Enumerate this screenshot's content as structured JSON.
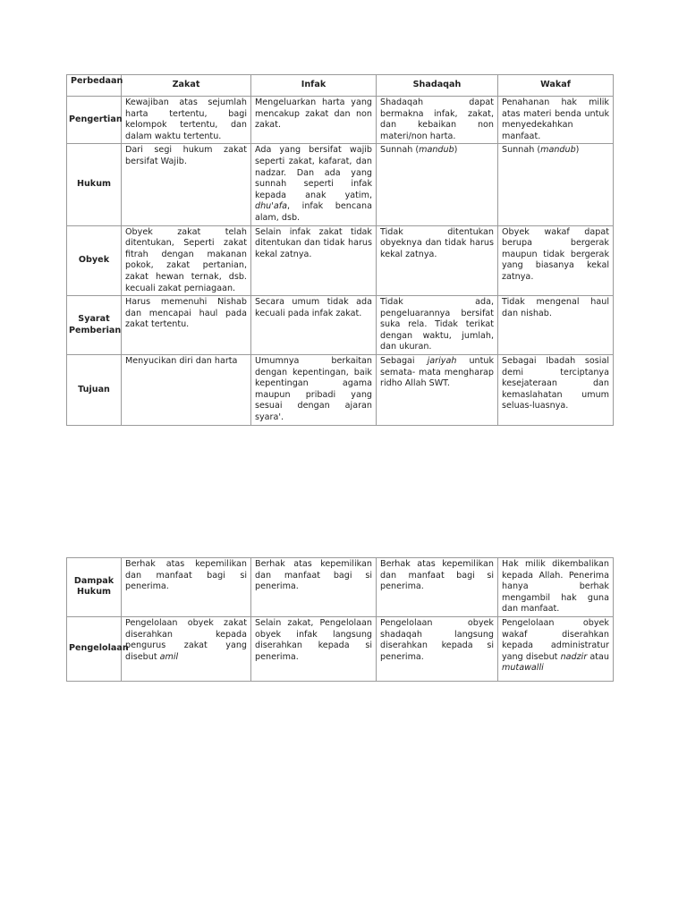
{
  "table1": {
    "headers": [
      "Perbedaan",
      "Zakat",
      "Infak",
      "Shadaqah",
      "Wakaf"
    ],
    "rows": [
      {
        "label": "Pengertian",
        "cells": [
          [
            {
              "t": "Kewajiban atas sejumlah harta tertentu, bagi kelompok tertentu, dan dalam waktu tertentu."
            }
          ],
          [
            {
              "t": "Mengeluarkan harta yang mencakup zakat dan non zakat."
            }
          ],
          [
            {
              "t": "Shadaqah dapat bermakna infak, zakat, dan kebaikan non materi/non harta."
            }
          ],
          [
            {
              "t": "Penahanan hak milik atas materi benda untuk menyedekahkan manfaat."
            }
          ]
        ]
      },
      {
        "label": "Hukum",
        "cells": [
          [
            {
              "t": "Dari segi hukum zakat bersifat Wajib."
            }
          ],
          [
            {
              "t": "Ada yang bersifat wajib seperti zakat, kafarat, dan nadzar. Dan ada yang sunnah seperti infak kepada anak yatim, "
            },
            {
              "t": "dhu'afa",
              "i": true
            },
            {
              "t": ", infak bencana alam, dsb."
            }
          ],
          [
            {
              "t": "Sunnah ("
            },
            {
              "t": "mandub",
              "i": true
            },
            {
              "t": ")"
            }
          ],
          [
            {
              "t": "Sunnah ("
            },
            {
              "t": "mandub",
              "i": true
            },
            {
              "t": ")"
            }
          ]
        ]
      },
      {
        "label": "Obyek",
        "cells": [
          [
            {
              "t": "Obyek zakat telah ditentukan, Seperti zakat fitrah dengan makanan pokok, zakat pertanian, zakat hewan ternak, dsb. kecuali zakat perniagaan."
            }
          ],
          [
            {
              "t": "Selain infak zakat tidak ditentukan dan tidak harus kekal zatnya."
            }
          ],
          [
            {
              "t": "Tidak ditentukan obyeknya dan tidak harus kekal zatnya."
            }
          ],
          [
            {
              "t": "Obyek wakaf dapat berupa bergerak maupun tidak bergerak yang biasanya kekal zatnya."
            }
          ]
        ]
      },
      {
        "label": "Syarat Pemberian",
        "cells": [
          [
            {
              "t": "Harus memenuhi Nishab dan mencapai haul pada zakat tertentu."
            }
          ],
          [
            {
              "t": "Secara umum tidak ada kecuali pada infak zakat."
            }
          ],
          [
            {
              "t": "Tidak ada, pengeluarannya bersifat suka rela. Tidak terikat dengan waktu, jumlah, dan ukuran."
            }
          ],
          [
            {
              "t": "Tidak mengenal haul dan nishab."
            }
          ]
        ]
      },
      {
        "label": "Tujuan",
        "cells": [
          [
            {
              "t": "Menyucikan diri dan harta"
            }
          ],
          [
            {
              "t": "Umumnya berkaitan dengan kepentingan, baik kepentingan agama maupun pribadi yang sesuai dengan ajaran syara'."
            }
          ],
          [
            {
              "t": "Sebagai "
            },
            {
              "t": "jariyah",
              "i": true
            },
            {
              "t": " untuk semata- mata mengharap ridho Allah SWT."
            }
          ],
          [
            {
              "t": "Sebagai Ibadah sosial demi terciptanya kesejateraan dan kemaslahatan umum seluas-luasnya."
            }
          ]
        ]
      }
    ]
  },
  "table2": {
    "rows": [
      {
        "label": "Dampak Hukum",
        "cells": [
          [
            {
              "t": "Berhak atas kepemilikan dan manfaat bagi si penerima."
            }
          ],
          [
            {
              "t": "Berhak atas kepemilikan dan manfaat bagi si penerima."
            }
          ],
          [
            {
              "t": "Berhak atas kepemilikan dan manfaat bagi si penerima."
            }
          ],
          [
            {
              "t": "Hak milik dikembalikan kepada Allah. Penerima hanya berhak mengambil hak guna dan manfaat."
            }
          ]
        ]
      },
      {
        "label": "Pengelolaan",
        "cells": [
          [
            {
              "t": "Pengelolaan obyek zakat diserahkan kepada pengurus zakat yang disebut "
            },
            {
              "t": "amil",
              "i": true
            }
          ],
          [
            {
              "t": "Selain zakat, Pengelolaan obyek infak langsung diserahkan kepada si penerima."
            }
          ],
          [
            {
              "t": "Pengelolaan obyek shadaqah langsung diserahkan kepada si penerima."
            }
          ],
          [
            {
              "t": "Pengelolaan obyek wakaf diserahkan kepada administratur yang disebut "
            },
            {
              "t": "nadzir",
              "i": true
            },
            {
              "t": " atau "
            },
            {
              "t": "mutawalli",
              "i": true
            }
          ]
        ]
      }
    ]
  }
}
